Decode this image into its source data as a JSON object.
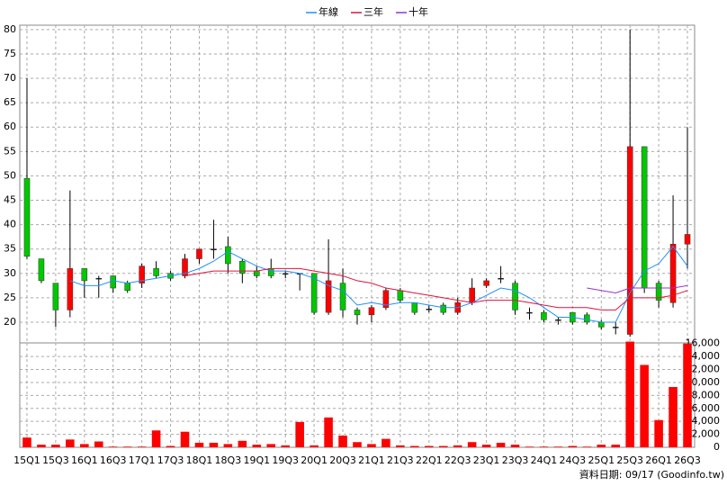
{
  "chart_data": [
    {
      "type": "candlestick",
      "legend": "top",
      "grid": true,
      "up_color": "#ff0000",
      "down_color": "#00c800",
      "flat_color": "#000000",
      "categories": [
        "15Q1",
        null,
        "15Q3",
        null,
        "16Q1",
        null,
        "16Q3",
        null,
        "17Q1",
        null,
        "17Q3",
        null,
        "18Q1",
        null,
        "18Q3",
        null,
        "19Q1",
        null,
        "19Q3",
        null,
        "20Q1",
        null,
        "20Q3",
        null,
        "21Q1",
        null,
        "21Q3",
        null,
        "22Q1",
        null,
        "22Q3",
        null,
        "23Q1",
        null,
        "23Q3",
        null,
        "24Q1",
        null,
        "24Q3",
        null,
        "25Q1",
        null,
        "25Q3",
        null,
        "26Q1",
        null,
        "26Q3"
      ],
      "open": [
        49.5,
        33,
        28,
        22.5,
        31,
        29,
        29.5,
        28,
        28,
        31,
        30,
        29.5,
        33,
        35,
        35.5,
        32.5,
        30.5,
        31,
        30,
        30,
        30,
        22,
        28,
        22.5,
        21.5,
        23,
        26.5,
        24,
        22.7,
        23.5,
        22,
        24,
        27.5,
        29,
        28,
        22,
        22,
        20.5,
        22,
        21.5,
        20,
        19,
        17.5,
        56,
        28,
        24,
        36
      ],
      "high": [
        70,
        33,
        28,
        47,
        31,
        29.5,
        29.5,
        28.5,
        32,
        32.5,
        30.5,
        34,
        35,
        41,
        37.5,
        33,
        31.5,
        33,
        30.5,
        30,
        30,
        37,
        31,
        23,
        23.5,
        27,
        27,
        24,
        23.5,
        24,
        25,
        29,
        29,
        31.5,
        28.5,
        23,
        22.5,
        21,
        22,
        22,
        20.5,
        20,
        80,
        56,
        28.5,
        46,
        60
      ],
      "low": [
        33,
        28,
        19,
        21,
        25,
        25,
        26,
        26,
        27,
        29,
        28.5,
        29,
        32,
        33,
        30,
        28,
        29,
        29,
        29,
        26.5,
        21.5,
        21.5,
        21,
        19.5,
        20,
        22.5,
        24,
        21.5,
        22,
        21.5,
        21.5,
        23.5,
        27,
        28,
        21.5,
        20.5,
        20,
        19.5,
        19.5,
        19.5,
        18.5,
        17.5,
        17,
        26,
        23,
        23,
        31
      ],
      "close": [
        33.5,
        28.5,
        22.5,
        31,
        28.5,
        29,
        27,
        26.5,
        31.5,
        29.5,
        29,
        33,
        35,
        35,
        32,
        30,
        29.5,
        29.5,
        30,
        30,
        22,
        28.5,
        22.5,
        21.5,
        23,
        26.5,
        24.5,
        22,
        22.7,
        22,
        24,
        27,
        28.5,
        29,
        22.5,
        22,
        20.5,
        20.5,
        20,
        20,
        19,
        19,
        56,
        27,
        24.5,
        36,
        38
      ],
      "ylim": [
        15.75,
        80.9
      ],
      "yticks": [
        20,
        25,
        30,
        35,
        40,
        45,
        50,
        55,
        60,
        65,
        70,
        75,
        80
      ],
      "series": [
        {
          "name": "年線",
          "color": "#1e90ff",
          "values": [
            null,
            null,
            null,
            28.5,
            27.5,
            27.5,
            28.5,
            28,
            28.5,
            29,
            29.5,
            30,
            31,
            32.5,
            34.5,
            33,
            31.5,
            30.5,
            30.5,
            30,
            29,
            27.5,
            26.5,
            23.5,
            24,
            23.5,
            24,
            24,
            23.5,
            23,
            23,
            24,
            25.5,
            27,
            26.5,
            25,
            23,
            21,
            21,
            20.5,
            20,
            20,
            26,
            30.5,
            32,
            35.5,
            31.5
          ]
        },
        {
          "name": "三年",
          "color": "#dc143c",
          "values": [
            null,
            null,
            null,
            null,
            null,
            null,
            null,
            null,
            null,
            null,
            null,
            29.5,
            30,
            30.5,
            30.5,
            30.5,
            30.5,
            31,
            31,
            31,
            30.5,
            30,
            29.5,
            28.5,
            28,
            27,
            26.5,
            26,
            25.5,
            25,
            24.5,
            24,
            24.5,
            24.5,
            24.5,
            24,
            23.5,
            23,
            23,
            23,
            22.5,
            22.5,
            25,
            25,
            25,
            25.5,
            26.5
          ]
        },
        {
          "name": "十年",
          "color": "#9932cc",
          "values": [
            null,
            null,
            null,
            null,
            null,
            null,
            null,
            null,
            null,
            null,
            null,
            null,
            null,
            null,
            null,
            null,
            null,
            null,
            null,
            null,
            null,
            null,
            null,
            null,
            null,
            null,
            null,
            null,
            null,
            null,
            null,
            null,
            null,
            null,
            null,
            null,
            null,
            null,
            null,
            27,
            26.5,
            26,
            27,
            27,
            27,
            27,
            27.5
          ]
        }
      ]
    },
    {
      "type": "bar",
      "color": "#ff0000",
      "grid": true,
      "values": [
        1500,
        400,
        400,
        1200,
        500,
        900,
        100,
        100,
        100,
        2600,
        200,
        2400,
        700,
        700,
        500,
        1000,
        400,
        500,
        300,
        3900,
        300,
        4600,
        1800,
        800,
        500,
        1300,
        300,
        200,
        200,
        200,
        300,
        800,
        400,
        700,
        400,
        100,
        100,
        100,
        200,
        100,
        400,
        400,
        16300,
        12700,
        4200,
        9300,
        16000
      ],
      "ylim": [
        0,
        16100
      ],
      "yticks": [
        0,
        {
          "value": 2000,
          "label": "2,000"
        },
        {
          "value": 4000,
          "label": "4,000"
        },
        {
          "value": 6000,
          "label": "6,000"
        },
        {
          "value": 8000,
          "label": "8,000"
        },
        {
          "value": 10000,
          "label": "10,000"
        },
        {
          "value": 12000,
          "label": "12,000"
        },
        {
          "value": 14000,
          "label": "14,000"
        },
        {
          "value": 16000,
          "label": "16,000"
        }
      ]
    }
  ],
  "footer": "資料日期: 09/17 (Goodinfo.tw)"
}
